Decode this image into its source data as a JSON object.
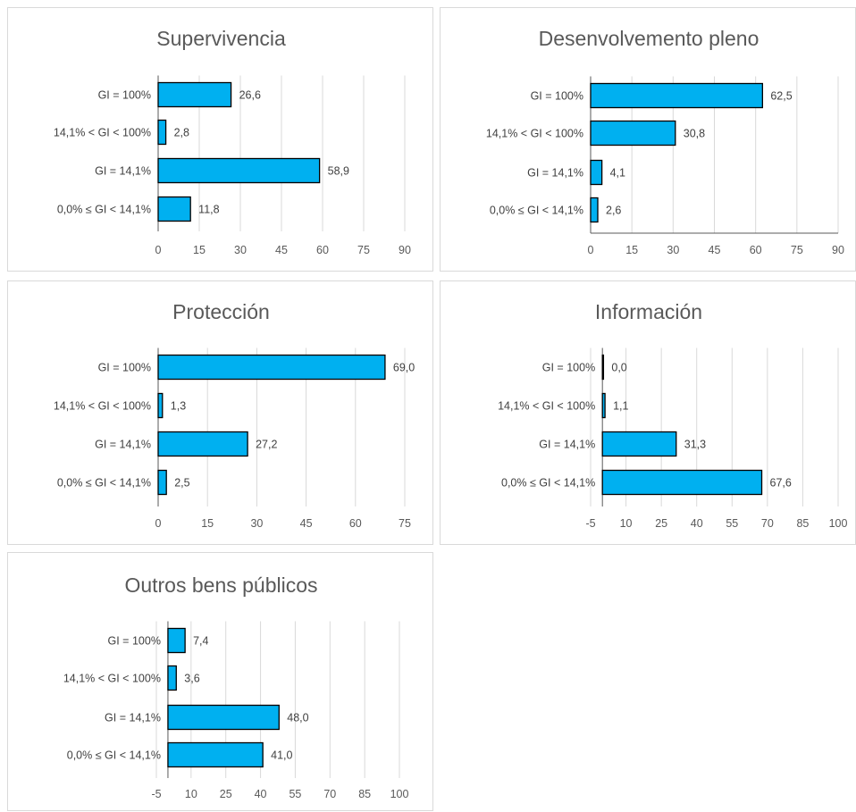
{
  "colors": {
    "bar": "#00b0f0",
    "bar_border": "#000000",
    "grid": "#d9d9d9"
  },
  "chart_data": [
    {
      "type": "bar",
      "title": "Supervivencia",
      "categories": [
        "GI = 100%",
        "14,1% < GI < 100%",
        "GI = 14,1%",
        "0,0% ≤ GI < 14,1%"
      ],
      "values": [
        26.6,
        2.8,
        58.9,
        11.8
      ],
      "data_labels": [
        "26,6",
        "2,8",
        "58,9",
        "11,8"
      ],
      "xticks": [
        0,
        15,
        30,
        45,
        60,
        75,
        90
      ],
      "xlim": [
        0,
        90
      ],
      "grid": true
    },
    {
      "type": "bar",
      "title": "Desenvolvemento pleno",
      "categories": [
        "GI = 100%",
        "14,1% < GI < 100%",
        "GI = 14,1%",
        "0,0% ≤ GI < 14,1%"
      ],
      "values": [
        62.5,
        30.8,
        4.1,
        2.6
      ],
      "data_labels": [
        "62,5",
        "30,8",
        "4,1",
        "2,6"
      ],
      "xticks": [
        0,
        15,
        30,
        45,
        60,
        75,
        90
      ],
      "xlim": [
        0,
        90
      ],
      "grid": true
    },
    {
      "type": "bar",
      "title": "Protección",
      "categories": [
        "GI = 100%",
        "14,1% < GI < 100%",
        "GI = 14,1%",
        "0,0% ≤ GI < 14,1%"
      ],
      "values": [
        69.0,
        1.3,
        27.2,
        2.5
      ],
      "data_labels": [
        "69,0",
        "1,3",
        "27,2",
        "2,5"
      ],
      "xticks": [
        0,
        15,
        30,
        45,
        60,
        75
      ],
      "xlim": [
        0,
        75
      ],
      "grid": true
    },
    {
      "type": "bar",
      "title": "Información",
      "categories": [
        "GI = 100%",
        "14,1% < GI < 100%",
        "GI = 14,1%",
        "0,0% ≤ GI < 14,1%"
      ],
      "values": [
        0.0,
        1.1,
        31.3,
        67.6
      ],
      "data_labels": [
        "0,0",
        "1,1",
        "31,3",
        "67,6"
      ],
      "xticks": [
        -5,
        10,
        25,
        40,
        55,
        70,
        85,
        100
      ],
      "xlim": [
        -5,
        100
      ],
      "grid": true
    },
    {
      "type": "bar",
      "title": "Outros bens públicos",
      "categories": [
        "GI = 100%",
        "14,1% < GI < 100%",
        "GI = 14,1%",
        "0,0% ≤ GI < 14,1%"
      ],
      "values": [
        7.4,
        3.6,
        48.0,
        41.0
      ],
      "data_labels": [
        "7,4",
        "3,6",
        "48,0",
        "41,0"
      ],
      "xticks": [
        -5,
        10,
        25,
        40,
        55,
        70,
        85,
        100
      ],
      "xlim": [
        -5,
        100
      ],
      "grid": true
    }
  ]
}
